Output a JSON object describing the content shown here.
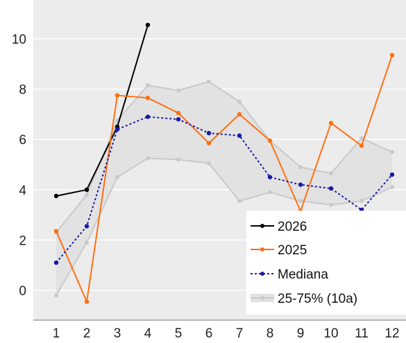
{
  "chart_data": {
    "type": "line",
    "x": [
      1,
      2,
      3,
      4,
      5,
      6,
      7,
      8,
      9,
      10,
      11,
      12
    ],
    "x_ticks": [
      "1",
      "2",
      "3",
      "4",
      "5",
      "6",
      "7",
      "8",
      "9",
      "10",
      "11",
      "12"
    ],
    "y_ticks": [
      "0",
      "2",
      "4",
      "6",
      "8",
      "10"
    ],
    "ylim": [
      -1,
      11
    ],
    "xlim": [
      0.2,
      12.3
    ],
    "grid": "horizontal",
    "legend_position": "bottom-right",
    "band": {
      "name": "25-75% (10a)",
      "color": "#e2e2e2",
      "line_color": "#c9c9c9",
      "lower": [
        -0.2,
        1.9,
        4.5,
        5.25,
        5.2,
        5.05,
        3.55,
        3.9,
        3.55,
        3.4,
        3.55,
        4.1
      ],
      "upper": [
        2.3,
        3.8,
        6.75,
        8.15,
        7.95,
        8.3,
        7.5,
        5.95,
        4.9,
        4.65,
        6.05,
        5.5
      ]
    },
    "series": [
      {
        "name": "2026",
        "color": "#000000",
        "style": "solid",
        "values": [
          3.75,
          4.0,
          6.5,
          10.55,
          null,
          null,
          null,
          null,
          null,
          null,
          null,
          null
        ]
      },
      {
        "name": "2025",
        "color": "#ff6f0f",
        "style": "solid",
        "values": [
          2.35,
          -0.45,
          7.75,
          7.65,
          7.05,
          5.85,
          7.0,
          5.95,
          3.15,
          6.65,
          5.75,
          9.35
        ]
      },
      {
        "name": "Mediana",
        "color": "#1a1aa8",
        "style": "dotted",
        "values": [
          1.1,
          2.55,
          6.4,
          6.9,
          6.8,
          6.25,
          6.15,
          4.5,
          4.2,
          4.05,
          3.2,
          4.6
        ]
      }
    ],
    "legend": [
      "2026",
      "2025",
      "Mediana",
      "25-75% (10a)"
    ]
  }
}
